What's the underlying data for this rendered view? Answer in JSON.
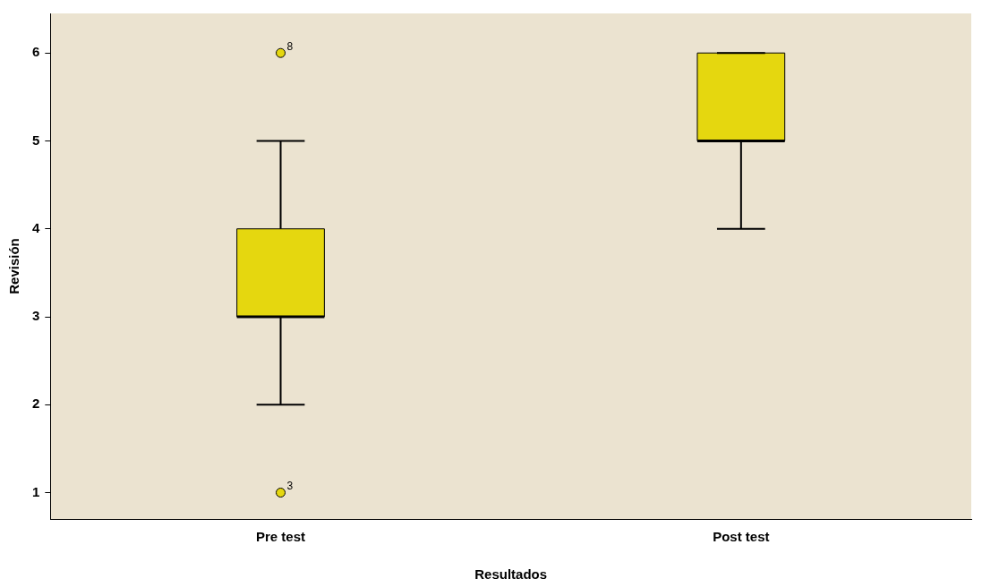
{
  "chart_data": {
    "type": "box",
    "xlabel": "Resultados",
    "ylabel": "Revisión",
    "categories": [
      "Pre test",
      "Post test"
    ],
    "boxes": [
      {
        "low": 2,
        "q1": 3,
        "median": 3,
        "q3": 4,
        "high": 5,
        "outliers": [
          6,
          1
        ]
      },
      {
        "low": 4,
        "q1": 5,
        "median": 5,
        "q3": 6,
        "high": 6
      }
    ],
    "color": "#e5d70f",
    "marker": "circle",
    "ylim": [
      0.7,
      6.45
    ],
    "yticks": [
      1,
      2,
      3,
      4,
      5,
      6
    ],
    "grid": false,
    "legend": false,
    "annotations": [
      "8",
      "3"
    ]
  }
}
